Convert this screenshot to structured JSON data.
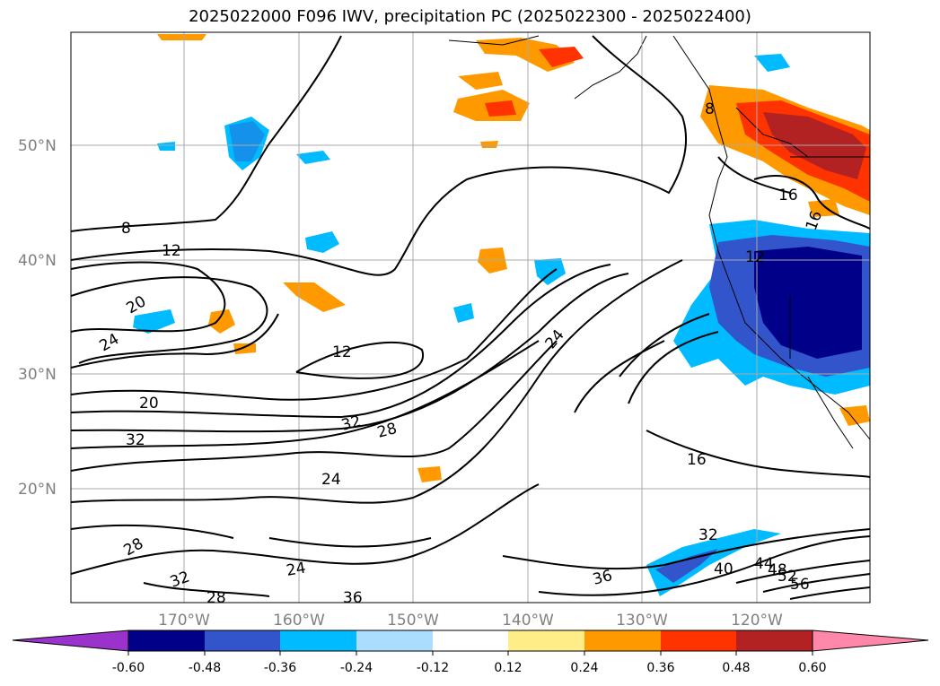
{
  "title": "2025022000 F096 IWV, precipitation PC (2025022300 - 2025022400)",
  "map": {
    "lat_labels": [
      "50°N",
      "40°N",
      "30°N",
      "20°N"
    ],
    "lon_labels": [
      "170°W",
      "160°W",
      "150°W",
      "140°W",
      "130°W",
      "120°W"
    ],
    "contour_labels": [
      "8",
      "12",
      "20",
      "24",
      "12",
      "20",
      "32",
      "32",
      "28",
      "24",
      "28",
      "32",
      "28",
      "24",
      "36",
      "24",
      "16",
      "32",
      "36",
      "40",
      "44",
      "48",
      "52",
      "56",
      "16",
      "16",
      "12",
      "8"
    ]
  },
  "colorbar": {
    "tick_labels": [
      "-0.60",
      "-0.48",
      "-0.36",
      "-0.24",
      "-0.12",
      "0.12",
      "0.24",
      "0.36",
      "0.48",
      "0.60"
    ],
    "colors": [
      "#9933cc",
      "#000088",
      "#3355cc",
      "#00bbff",
      "#aaddff",
      "#ffffff",
      "#ffee88",
      "#ff9900",
      "#ff3300",
      "#b22222",
      "#ff88aa"
    ]
  }
}
